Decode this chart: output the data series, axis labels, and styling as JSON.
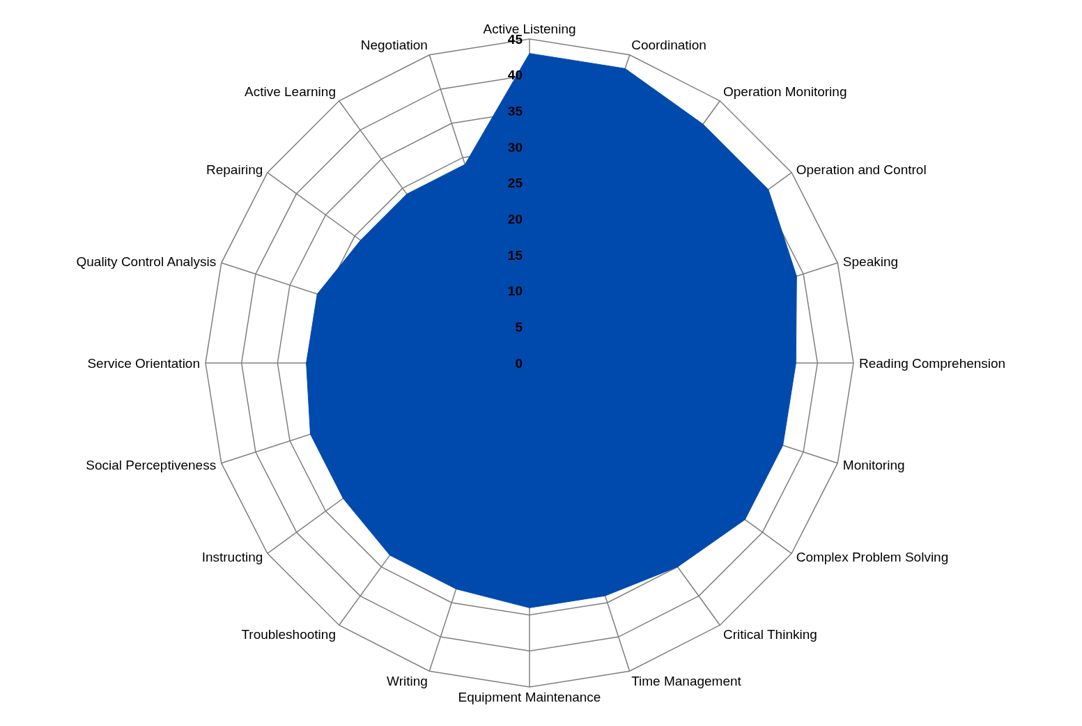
{
  "chart_data": {
    "type": "radar",
    "categories": [
      "Active Listening",
      "Coordination",
      "Operation Monitoring",
      "Operation and Control",
      "Speaking",
      "Reading Comprehension",
      "Monitoring",
      "Complex Problem Solving",
      "Critical Thinking",
      "Time Management",
      "Equipment Maintenance",
      "Writing",
      "Troubleshooting",
      "Instructing",
      "Social Perceptiveness",
      "Service Orientation",
      "Quality Control Analysis",
      "Repairing",
      "Active Learning",
      "Negotiation"
    ],
    "series": [
      {
        "color": "#004aad",
        "values": [
          43,
          43,
          41,
          41,
          39,
          37,
          37,
          37,
          35,
          34,
          34,
          33,
          33,
          32,
          32,
          31,
          31,
          29,
          29,
          29
        ]
      }
    ],
    "ylim": [
      0,
      45
    ],
    "yticks": [
      0,
      5,
      10,
      15,
      20,
      25,
      30,
      35,
      40,
      45
    ],
    "grid": true
  }
}
